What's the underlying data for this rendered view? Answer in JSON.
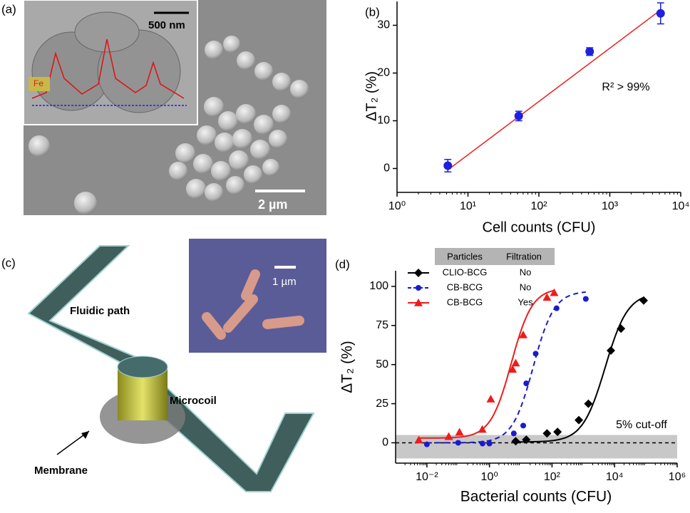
{
  "panel_a": {
    "label": "(a)",
    "inset_scale": "500 nm",
    "element": "Fe",
    "scale": "2 µm"
  },
  "panel_c": {
    "label": "(c)",
    "fluidic_path": "Fluidic path",
    "microcoil": "Microcoil",
    "membrane": "Membrane",
    "inset_scale": "1 µm"
  },
  "chart_data": [
    {
      "type": "scatter",
      "panel_label": "(b)",
      "xlabel": "Cell counts (CFU)",
      "ylabel": "ΔT₂ (%)",
      "annotation": "R² > 99%",
      "xscale": "log",
      "xlim": [
        1,
        10000
      ],
      "xticks": [
        {
          "value": 1,
          "label": "10⁰"
        },
        {
          "value": 10,
          "label": "10¹"
        },
        {
          "value": 100,
          "label": "10²"
        },
        {
          "value": 1000,
          "label": "10³"
        },
        {
          "value": 10000,
          "label": "10⁴"
        }
      ],
      "ylim": [
        -5,
        35
      ],
      "yticks": [
        0,
        10,
        20,
        30
      ],
      "series": [
        {
          "color": "#1f1fe0",
          "x": [
            5.2,
            52,
            520,
            5200
          ],
          "values": [
            0.6,
            11,
            24.5,
            32.5
          ],
          "errors": [
            1.3,
            1,
            0.8,
            2.2
          ]
        }
      ],
      "fit": {
        "color": "#e8211e",
        "x": [
          5.2,
          5200
        ],
        "values": [
          -0.3,
          33.2
        ]
      }
    },
    {
      "type": "line",
      "panel_label": "(d)",
      "xlabel": "Bacterial counts (CFU)",
      "ylabel": "ΔT₂ (%)",
      "annotation": "5% cut-off",
      "xscale": "log",
      "xlim": [
        0.001,
        1000000
      ],
      "xticks": [
        {
          "value": 0.01,
          "label": "10⁻²"
        },
        {
          "value": 1,
          "label": "10⁰"
        },
        {
          "value": 100,
          "label": "10²"
        },
        {
          "value": 10000,
          "label": "10⁴"
        },
        {
          "value": 1000000,
          "label": "10⁶"
        }
      ],
      "ylim": [
        -13,
        110
      ],
      "yticks": [
        0,
        25,
        50,
        75,
        100
      ],
      "legend_header": [
        "Particles",
        "Filtration"
      ],
      "cutoff_band": [
        -10,
        5
      ],
      "baseline": 0,
      "series": [
        {
          "name": "CLIO-BCG",
          "filtration": "No",
          "color": "#000000",
          "marker": "diamond",
          "dash": false,
          "x": [
            6.9,
            15,
            69,
            150,
            720,
            1450,
            7600,
            16000,
            85000
          ],
          "values": [
            1,
            2,
            6,
            7,
            14.5,
            25,
            59,
            73,
            91
          ],
          "fit": {
            "bottom": 0.5,
            "top": 96,
            "ec50": 5000,
            "hill": 1.2
          }
        },
        {
          "name": "CB-BCG",
          "filtration": "No",
          "color": "#1a1ad0",
          "marker": "circle",
          "dash": true,
          "x": [
            0.01,
            0.1,
            0.6,
            1,
            6,
            12,
            15,
            30,
            140,
            1200
          ],
          "values": [
            -1,
            0,
            -0.5,
            -0.5,
            6,
            11,
            38,
            57,
            86,
            92
          ],
          "fit": {
            "bottom": 0,
            "top": 97,
            "ec50": 25,
            "hill": 1.3
          }
        },
        {
          "name": "CB-BCG",
          "filtration": "Yes",
          "color": "#ee1c1c",
          "marker": "triangle",
          "dash": false,
          "x": [
            0.0055,
            0.05,
            0.11,
            0.59,
            1.1,
            5.5,
            6.9,
            12,
            69,
            117
          ],
          "values": [
            1.8,
            4,
            6.8,
            8.6,
            28,
            47,
            51,
            69,
            93,
            96
          ],
          "fit": {
            "bottom": 3,
            "top": 99,
            "ec50": 5,
            "hill": 1.3
          }
        }
      ]
    }
  ]
}
